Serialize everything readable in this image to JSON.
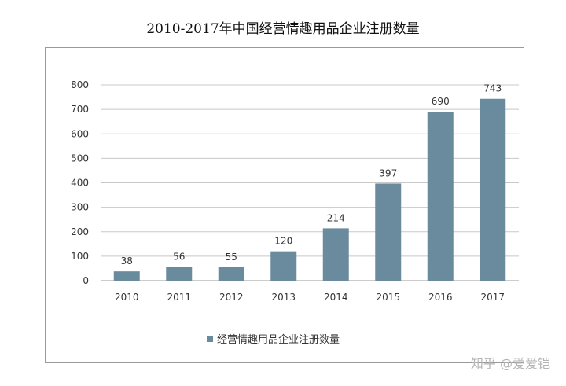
{
  "chart_data": {
    "type": "bar",
    "title": "2010-2017年中国经营情趣用品企业注册数量",
    "categories": [
      "2010",
      "2011",
      "2012",
      "2013",
      "2014",
      "2015",
      "2016",
      "2017"
    ],
    "series": [
      {
        "name": "经营情趣用品企业注册数量",
        "values": [
          38,
          56,
          55,
          120,
          214,
          397,
          690,
          743
        ]
      }
    ],
    "data_labels": [
      "38",
      "56",
      "55",
      "120",
      "214",
      "397",
      "690",
      "743"
    ],
    "yticks": [
      0,
      100,
      200,
      300,
      400,
      500,
      600,
      700,
      800
    ],
    "ylim": [
      0,
      800
    ],
    "xlabel": "",
    "ylabel": "",
    "grid": true,
    "legend_position": "bottom",
    "colors": {
      "bar": "#6a8b9e",
      "grid": "#c8c8c8",
      "axis_text": "#333333"
    }
  },
  "watermark": "知乎 @爱爱铠"
}
